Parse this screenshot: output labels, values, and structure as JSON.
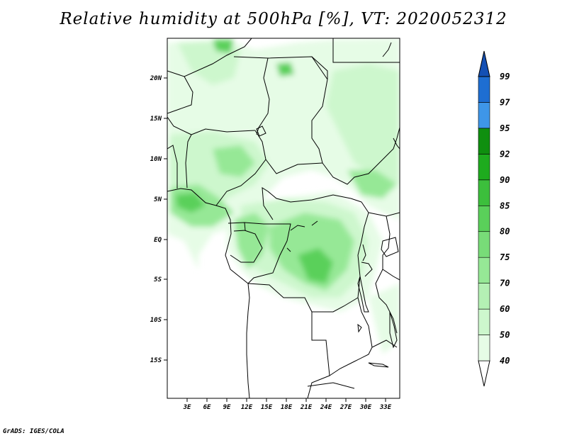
{
  "title": "Relative humidity at 500hPa [%], VT: 2020052312",
  "credit": "GrADS: IGES/COLA",
  "map": {
    "lat_labels": [
      "20N",
      "15N",
      "10N",
      "5N",
      "EQ",
      "5S",
      "10S",
      "15S"
    ],
    "lon_labels": [
      "3E",
      "6E",
      "9E",
      "12E",
      "15E",
      "18E",
      "21E",
      "24E",
      "27E",
      "30E",
      "33E"
    ]
  },
  "colorbar": {
    "levels": [
      "40",
      "50",
      "60",
      "70",
      "75",
      "80",
      "85",
      "90",
      "92",
      "95",
      "97",
      "99"
    ],
    "colors": [
      "#ffffff",
      "#e6fce6",
      "#cdf7cd",
      "#b4f0b4",
      "#96e896",
      "#78dc78",
      "#5ad05a",
      "#3cbf3c",
      "#1eab1e",
      "#0f8f0f",
      "#3e96e8",
      "#1e6ed2",
      "#1450b4"
    ]
  }
}
